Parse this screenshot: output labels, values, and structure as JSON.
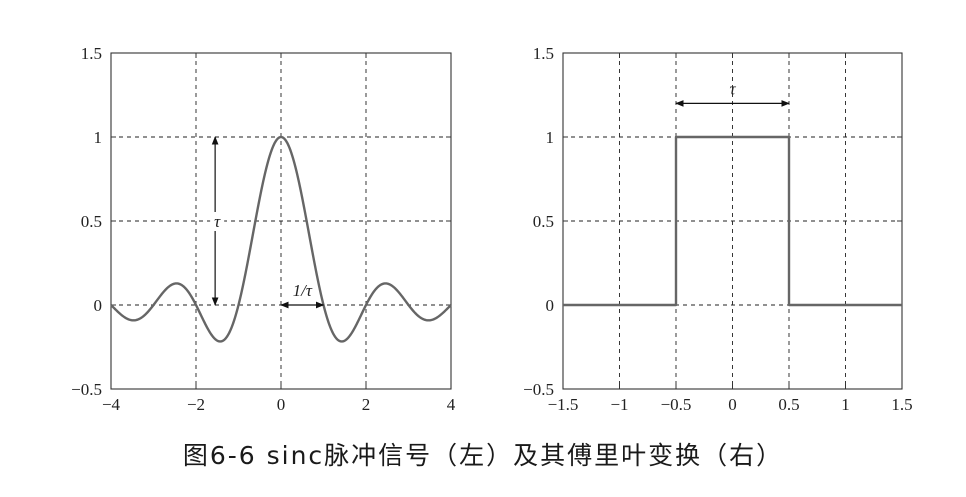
{
  "caption": "图6-6  sinc脉冲信号（左）及其傅里叶变换（右）",
  "colors": {
    "curve": "#666666",
    "axis": "#333333",
    "grid": "#222222",
    "annotation": "#111111"
  },
  "chart_data": [
    {
      "type": "line",
      "function": "sinc",
      "x_range": [
        -4,
        4
      ],
      "xlim": [
        -4,
        4
      ],
      "ylim": [
        -0.5,
        1.5
      ],
      "xticks": [
        -4,
        -2,
        0,
        2,
        4
      ],
      "xtick_labels": [
        "−4",
        "−2",
        "0",
        "2",
        "4"
      ],
      "yticks": [
        -0.5,
        0,
        0.5,
        1,
        1.5
      ],
      "ytick_labels": [
        "−0.5",
        "0",
        "0.5",
        "1",
        "1.5"
      ],
      "grid": true,
      "grid_style": "dashed",
      "tau": 1,
      "annotations": [
        {
          "label": "τ",
          "kind": "double-arrow-vertical",
          "from": [
            -1.55,
            0
          ],
          "to": [
            -1.55,
            1
          ]
        },
        {
          "label": "1/τ",
          "kind": "double-arrow-horizontal",
          "from": [
            0,
            0
          ],
          "to": [
            1,
            0
          ]
        }
      ]
    },
    {
      "type": "line",
      "function": "rect",
      "x": [
        -1.5,
        -0.5,
        -0.5,
        0.5,
        0.5,
        1.5
      ],
      "y": [
        0,
        0,
        1,
        1,
        0,
        0
      ],
      "xlim": [
        -1.5,
        1.5
      ],
      "ylim": [
        -0.5,
        1.5
      ],
      "xticks": [
        -1.5,
        -1,
        -0.5,
        0,
        0.5,
        1,
        1.5
      ],
      "xtick_labels": [
        "−1.5",
        "−1",
        "−0.5",
        "0",
        "0.5",
        "1",
        "1.5"
      ],
      "yticks": [
        -0.5,
        0,
        0.5,
        1,
        1.5
      ],
      "ytick_labels": [
        "−0.5",
        "0",
        "0.5",
        "1",
        "1.5"
      ],
      "grid": true,
      "grid_style": "dashed",
      "annotations": [
        {
          "label": "τ",
          "kind": "double-arrow-horizontal",
          "from": [
            -0.5,
            1.2
          ],
          "to": [
            0.5,
            1.2
          ]
        }
      ]
    }
  ]
}
